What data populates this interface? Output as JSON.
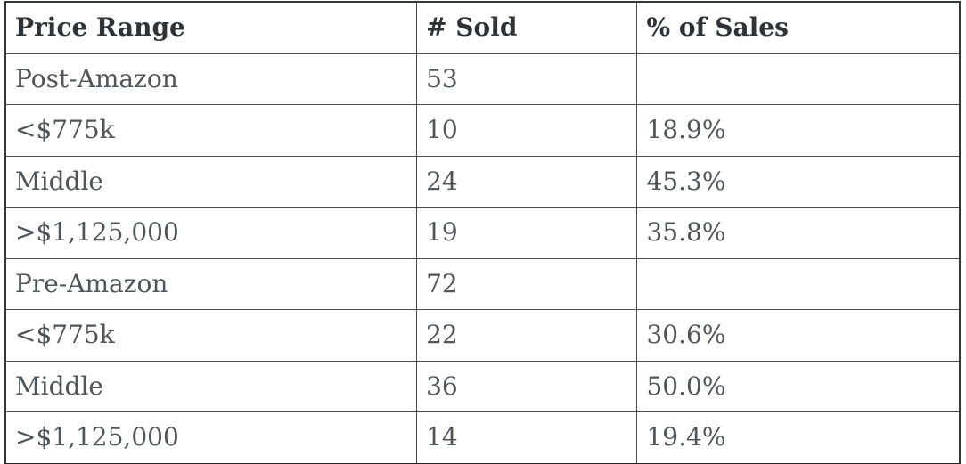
{
  "table": {
    "columns": [
      "Price Range",
      "# Sold",
      "% of Sales"
    ],
    "rows": [
      {
        "price_range": "Post-Amazon",
        "sold": "53",
        "pct": ""
      },
      {
        "price_range": "<$775k",
        "sold": "10",
        "pct": "18.9%"
      },
      {
        "price_range": "Middle",
        "sold": "24",
        "pct": "45.3%"
      },
      {
        "price_range": ">$1,125,000",
        "sold": "19",
        "pct": "35.8%"
      },
      {
        "price_range": "Pre-Amazon",
        "sold": "72",
        "pct": ""
      },
      {
        "price_range": "<$775k",
        "sold": "22",
        "pct": "30.6%"
      },
      {
        "price_range": "Middle",
        "sold": "36",
        "pct": "50.0%"
      },
      {
        "price_range": ">$1,125,000",
        "sold": "14",
        "pct": "19.4%"
      }
    ]
  },
  "colors": {
    "header_text": "#2f3338",
    "body_text": "#50555a",
    "grid_line": "#4a4e52",
    "top_rule": "#35383b",
    "bottom_rule": "#232528",
    "background": "#ffffff"
  },
  "chart_data": {
    "type": "table",
    "title": "",
    "columns": [
      "Price Range",
      "# Sold",
      "% of Sales"
    ],
    "rows": [
      [
        "Post-Amazon",
        53,
        null
      ],
      [
        "<$775k",
        10,
        "18.9%"
      ],
      [
        "Middle",
        24,
        "45.3%"
      ],
      [
        ">$1,125,000",
        19,
        "35.8%"
      ],
      [
        "Pre-Amazon",
        72,
        null
      ],
      [
        "<$775k",
        22,
        "30.6%"
      ],
      [
        "Middle",
        36,
        "50.0%"
      ],
      [
        ">$1,125,000",
        14,
        "19.4%"
      ]
    ],
    "notes": "Two groups: Post-Amazon (53 total sold) and Pre-Amazon (72 total sold), each broken into <$775k / Middle / >$1,125,000 price bands with share of sales percentages."
  }
}
